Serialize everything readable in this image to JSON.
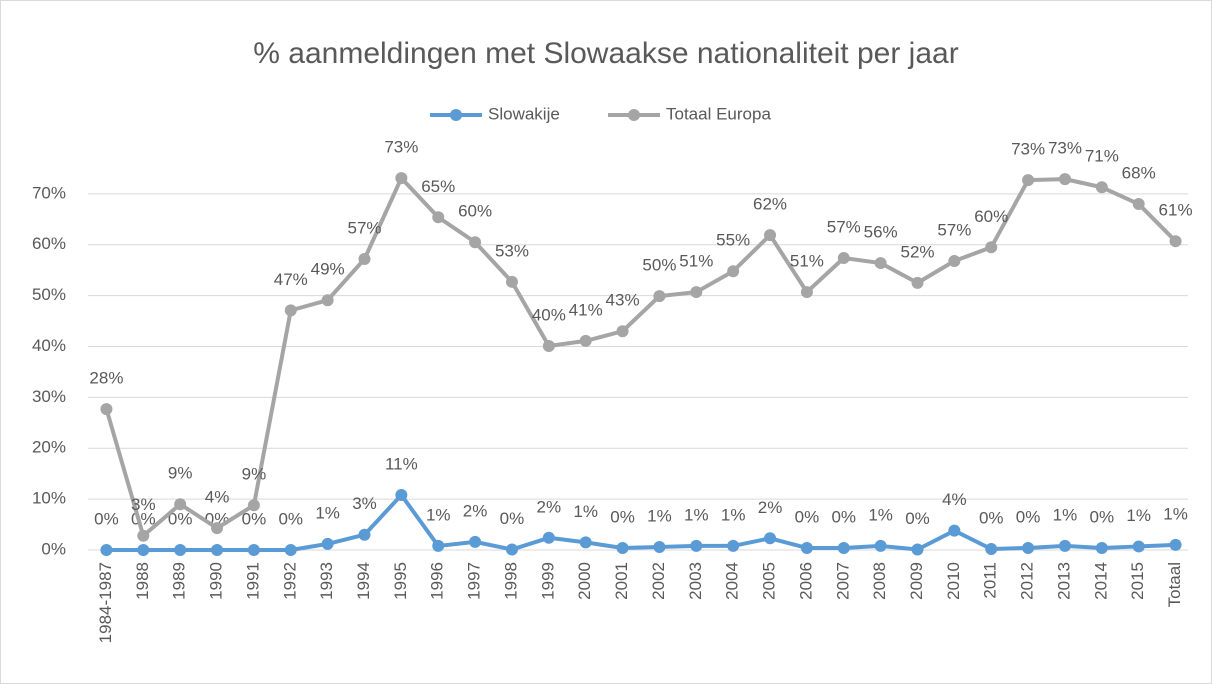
{
  "chart_data": {
    "type": "line",
    "title": "% aanmeldingen met Slowaakse nationaliteit per jaar",
    "categories": [
      "1984-1987",
      "1988",
      "1989",
      "1990",
      "1991",
      "1992",
      "1993",
      "1994",
      "1995",
      "1996",
      "1997",
      "1998",
      "1999",
      "2000",
      "2001",
      "2002",
      "2003",
      "2004",
      "2005",
      "2006",
      "2007",
      "2008",
      "2009",
      "2010",
      "2011",
      "2012",
      "2013",
      "2014",
      "2015",
      "Totaal"
    ],
    "series": [
      {
        "name": "Slowakije",
        "color": "#5b9bd5",
        "values": [
          0,
          0,
          0,
          0,
          0,
          0,
          1.2,
          3.0,
          10.8,
          0.8,
          1.6,
          0.1,
          2.4,
          1.5,
          0.4,
          0.6,
          0.8,
          0.8,
          2.3,
          0.4,
          0.4,
          0.8,
          0.1,
          3.8,
          0.2,
          0.4,
          0.8,
          0.4,
          0.7,
          1.0
        ],
        "value_labels": [
          "0%",
          "0%",
          "0%",
          "0%",
          "0%",
          "0%",
          "1%",
          "3%",
          "11%",
          "1%",
          "2%",
          "0%",
          "2%",
          "1%",
          "0%",
          "1%",
          "1%",
          "1%",
          "2%",
          "0%",
          "0%",
          "1%",
          "0%",
          "4%",
          "0%",
          "0%",
          "1%",
          "0%",
          "1%",
          "1%"
        ]
      },
      {
        "name": "Totaal Europa",
        "color": "#a5a5a5",
        "values": [
          27.7,
          2.8,
          9.0,
          4.3,
          8.8,
          47.1,
          49.1,
          57.2,
          73.1,
          65.4,
          60.5,
          52.7,
          40.1,
          41.1,
          43.0,
          49.9,
          50.7,
          54.8,
          61.9,
          50.7,
          57.4,
          56.4,
          52.5,
          56.8,
          59.5,
          72.7,
          72.9,
          71.3,
          68.0,
          60.7
        ],
        "value_labels": [
          "28%",
          "3%",
          "9%",
          "4%",
          "9%",
          "47%",
          "49%",
          "57%",
          "73%",
          "65%",
          "60%",
          "53%",
          "40%",
          "41%",
          "43%",
          "50%",
          "51%",
          "55%",
          "62%",
          "51%",
          "57%",
          "56%",
          "52%",
          "57%",
          "60%",
          "73%",
          "73%",
          "71%",
          "68%",
          "61%"
        ]
      }
    ],
    "ylim": [
      0,
      80
    ],
    "yticks": [
      {
        "value": 0,
        "label": "0%"
      },
      {
        "value": 10,
        "label": "10%"
      },
      {
        "value": 20,
        "label": "20%"
      },
      {
        "value": 30,
        "label": "30%"
      },
      {
        "value": 40,
        "label": "40%"
      },
      {
        "value": 50,
        "label": "50%"
      },
      {
        "value": 60,
        "label": "60%"
      },
      {
        "value": 70,
        "label": "70%"
      }
    ],
    "grid": true,
    "legend": "top"
  }
}
